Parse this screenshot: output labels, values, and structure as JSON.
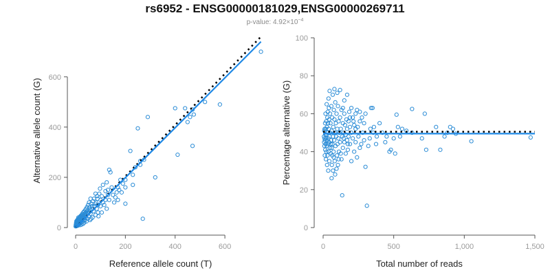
{
  "header": {
    "title": "rs6952 - ENSG00000181029,ENSG00000269711",
    "pvalue_prefix": "p-value: 4.92×10",
    "pvalue_exponent": "−4"
  },
  "colors": {
    "points": "#2b8cd6",
    "fit_line": "#1e88e5",
    "expected_line": "#000000"
  },
  "chart_data": [
    {
      "type": "scatter",
      "name": "left-panel",
      "title": "",
      "xlabel": "Reference allele count (T)",
      "ylabel": "Alternative allele count (G)",
      "xlim": [
        0,
        760
      ],
      "ylim": [
        0,
        780
      ],
      "x_ticks": [
        0,
        200,
        400,
        600
      ],
      "x_tick_labels": [
        "0",
        "200",
        "400",
        "600"
      ],
      "y_ticks": [
        0,
        200,
        400,
        600
      ],
      "y_tick_labels": [
        "0",
        "200",
        "400",
        "600"
      ],
      "fit_line": {
        "x": [
          0,
          745
        ],
        "y": [
          0,
          740
        ]
      },
      "expected_line": {
        "x": [
          0,
          745
        ],
        "y": [
          0,
          760
        ]
      },
      "points": [
        [
          745,
          700
        ],
        [
          580,
          490
        ],
        [
          520,
          500
        ],
        [
          470,
          470
        ],
        [
          475,
          450
        ],
        [
          460,
          440
        ],
        [
          450,
          420
        ],
        [
          440,
          475
        ],
        [
          410,
          290
        ],
        [
          400,
          475
        ],
        [
          470,
          325
        ],
        [
          290,
          440
        ],
        [
          320,
          200
        ],
        [
          270,
          35
        ],
        [
          250,
          395
        ],
        [
          260,
          265
        ],
        [
          275,
          270
        ],
        [
          260,
          250
        ],
        [
          240,
          240
        ],
        [
          230,
          210
        ],
        [
          230,
          170
        ],
        [
          220,
          305
        ],
        [
          200,
          160
        ],
        [
          200,
          190
        ],
        [
          190,
          175
        ],
        [
          185,
          140
        ],
        [
          170,
          110
        ],
        [
          180,
          190
        ],
        [
          170,
          160
        ],
        [
          160,
          120
        ],
        [
          200,
          95
        ],
        [
          135,
          230
        ],
        [
          140,
          220
        ],
        [
          130,
          150
        ],
        [
          130,
          130
        ],
        [
          120,
          110
        ],
        [
          120,
          145
        ],
        [
          110,
          100
        ],
        [
          110,
          170
        ],
        [
          105,
          125
        ],
        [
          100,
          85
        ],
        [
          100,
          110
        ],
        [
          95,
          135
        ],
        [
          90,
          60
        ],
        [
          90,
          90
        ],
        [
          88,
          115
        ],
        [
          85,
          75
        ],
        [
          82,
          100
        ],
        [
          80,
          50
        ],
        [
          80,
          135
        ],
        [
          75,
          85
        ],
        [
          72,
          65
        ],
        [
          70,
          105
        ],
        [
          68,
          40
        ],
        [
          65,
          75
        ],
        [
          63,
          95
        ],
        [
          60,
          55
        ],
        [
          60,
          115
        ],
        [
          58,
          30
        ],
        [
          56,
          80
        ],
        [
          55,
          62
        ],
        [
          52,
          45
        ],
        [
          50,
          90
        ],
        [
          48,
          35
        ],
        [
          47,
          68
        ],
        [
          45,
          52
        ],
        [
          44,
          25
        ],
        [
          42,
          75
        ],
        [
          40,
          40
        ],
        [
          40,
          58
        ],
        [
          38,
          30
        ],
        [
          37,
          48
        ],
        [
          35,
          20
        ],
        [
          34,
          64
        ],
        [
          33,
          38
        ],
        [
          32,
          28
        ],
        [
          30,
          45
        ],
        [
          30,
          15
        ],
        [
          28,
          35
        ],
        [
          27,
          55
        ],
        [
          26,
          22
        ],
        [
          25,
          40
        ],
        [
          24,
          12
        ],
        [
          23,
          30
        ],
        [
          22,
          48
        ],
        [
          21,
          18
        ],
        [
          20,
          35
        ],
        [
          20,
          25
        ],
        [
          19,
          10
        ],
        [
          18,
          28
        ],
        [
          18,
          42
        ],
        [
          17,
          20
        ],
        [
          16,
          32
        ],
        [
          15,
          14
        ],
        [
          15,
          24
        ],
        [
          14,
          38
        ],
        [
          13,
          18
        ],
        [
          13,
          28
        ],
        [
          12,
          12
        ],
        [
          12,
          22
        ],
        [
          11,
          30
        ],
        [
          11,
          16
        ],
        [
          10,
          8
        ],
        [
          10,
          20
        ],
        [
          10,
          26
        ],
        [
          9,
          14
        ],
        [
          9,
          33
        ],
        [
          8,
          10
        ],
        [
          8,
          18
        ],
        [
          7,
          24
        ],
        [
          7,
          12
        ],
        [
          6,
          16
        ],
        [
          6,
          8
        ],
        [
          5,
          20
        ],
        [
          5,
          11
        ],
        [
          4,
          14
        ],
        [
          4,
          6
        ],
        [
          3,
          10
        ],
        [
          3,
          17
        ],
        [
          2,
          8
        ],
        [
          2,
          13
        ],
        [
          1,
          6
        ],
        [
          1,
          11
        ],
        [
          0,
          5
        ],
        [
          150,
          130
        ],
        [
          155,
          100
        ],
        [
          145,
          160
        ],
        [
          165,
          140
        ],
        [
          175,
          150
        ],
        [
          125,
          180
        ],
        [
          115,
          90
        ],
        [
          135,
          110
        ],
        [
          125,
          75
        ],
        [
          105,
          60
        ],
        [
          98,
          155
        ],
        [
          92,
          45
        ],
        [
          86,
          125
        ],
        [
          78,
          95
        ],
        [
          74,
          115
        ],
        [
          66,
          85
        ],
        [
          62,
          35
        ],
        [
          58,
          72
        ],
        [
          54,
          100
        ],
        [
          49,
          58
        ],
        [
          46,
          82
        ],
        [
          43,
          62
        ],
        [
          41,
          50
        ],
        [
          39,
          70
        ],
        [
          36,
          55
        ],
        [
          31,
          60
        ],
        [
          29,
          40
        ],
        [
          26,
          50
        ],
        [
          24,
          45
        ],
        [
          22,
          38
        ],
        [
          19,
          45
        ],
        [
          17,
          38
        ],
        [
          14,
          25
        ],
        [
          12,
          35
        ],
        [
          11,
          40
        ],
        [
          9,
          22
        ],
        [
          8,
          28
        ],
        [
          7,
          30
        ],
        [
          6,
          22
        ],
        [
          5,
          28
        ],
        [
          4,
          22
        ],
        [
          3,
          25
        ],
        [
          2,
          18
        ]
      ]
    },
    {
      "type": "scatter",
      "name": "right-panel",
      "title": "",
      "xlabel": "Total number of reads",
      "ylabel": "Percentage alternative (G)",
      "xlim": [
        0,
        1500
      ],
      "ylim": [
        0,
        100
      ],
      "x_ticks": [
        0,
        500,
        1000,
        1500
      ],
      "x_tick_labels": [
        "0",
        "500",
        "1,000",
        "1,500"
      ],
      "y_ticks": [
        0,
        20,
        40,
        60,
        80,
        100
      ],
      "y_tick_labels": [
        "0",
        "20",
        "40",
        "60",
        "80",
        "100"
      ],
      "fit_line": {
        "x": [
          0,
          1500
        ],
        "y": [
          49.5,
          49.5
        ]
      },
      "expected_line": {
        "x": [
          0,
          1500
        ],
        "y": [
          50.5,
          50.5
        ]
      },
      "points": [
        [
          1470,
          47.5
        ],
        [
          1050,
          45.5
        ],
        [
          940,
          49.5
        ],
        [
          920,
          52
        ],
        [
          900,
          53
        ],
        [
          880,
          50
        ],
        [
          860,
          48
        ],
        [
          830,
          41
        ],
        [
          800,
          53
        ],
        [
          730,
          41
        ],
        [
          720,
          60
        ],
        [
          630,
          62.5
        ],
        [
          590,
          51
        ],
        [
          560,
          52
        ],
        [
          530,
          53
        ],
        [
          520,
          59.5
        ],
        [
          510,
          39
        ],
        [
          480,
          41
        ],
        [
          470,
          40
        ],
        [
          440,
          45
        ],
        [
          420,
          50
        ],
        [
          400,
          55
        ],
        [
          380,
          48
        ],
        [
          360,
          53
        ],
        [
          350,
          63
        ],
        [
          340,
          63
        ],
        [
          330,
          47
        ],
        [
          320,
          43
        ],
        [
          310,
          11.5
        ],
        [
          300,
          60
        ],
        [
          300,
          32
        ],
        [
          290,
          55
        ],
        [
          280,
          50
        ],
        [
          270,
          44
        ],
        [
          260,
          42
        ],
        [
          260,
          56
        ],
        [
          250,
          48
        ],
        [
          240,
          62
        ],
        [
          240,
          37
        ],
        [
          230,
          52
        ],
        [
          230,
          45
        ],
        [
          220,
          54
        ],
        [
          220,
          40
        ],
        [
          210,
          47
        ],
        [
          210,
          58
        ],
        [
          200,
          50
        ],
        [
          200,
          35
        ],
        [
          190,
          53
        ],
        [
          190,
          44
        ],
        [
          185,
          61
        ],
        [
          180,
          48
        ],
        [
          180,
          56
        ],
        [
          175,
          41
        ],
        [
          170,
          52
        ],
        [
          170,
          46
        ],
        [
          165,
          57
        ],
        [
          160,
          49
        ],
        [
          160,
          39
        ],
        [
          155,
          54
        ],
        [
          150,
          45
        ],
        [
          150,
          60
        ],
        [
          145,
          50
        ],
        [
          140,
          42
        ],
        [
          140,
          55
        ],
        [
          135,
          48
        ],
        [
          130,
          62
        ],
        [
          130,
          36
        ],
        [
          125,
          52
        ],
        [
          120,
          45
        ],
        [
          120,
          58
        ],
        [
          115,
          50
        ],
        [
          112,
          40
        ],
        [
          110,
          56
        ],
        [
          108,
          47
        ],
        [
          105,
          64
        ],
        [
          102,
          44
        ],
        [
          100,
          52
        ],
        [
          98,
          38
        ],
        [
          95,
          60
        ],
        [
          92,
          48
        ],
        [
          90,
          55
        ],
        [
          88,
          43
        ],
        [
          86,
          66
        ],
        [
          84,
          50
        ],
        [
          82,
          35
        ],
        [
          80,
          57
        ],
        [
          78,
          46
        ],
        [
          76,
          62
        ],
        [
          74,
          40
        ],
        [
          72,
          53
        ],
        [
          70,
          48
        ],
        [
          68,
          70
        ],
        [
          66,
          44
        ],
        [
          64,
          58
        ],
        [
          62,
          33
        ],
        [
          60,
          51
        ],
        [
          58,
          64
        ],
        [
          56,
          46
        ],
        [
          54,
          39
        ],
        [
          52,
          55
        ],
        [
          50,
          50
        ],
        [
          49,
          60
        ],
        [
          48,
          42
        ],
        [
          46,
          72
        ],
        [
          45,
          48
        ],
        [
          44,
          35
        ],
        [
          43,
          57
        ],
        [
          42,
          45
        ],
        [
          41,
          63
        ],
        [
          40,
          52
        ],
        [
          39,
          40
        ],
        [
          38,
          68
        ],
        [
          37,
          47
        ],
        [
          36,
          30
        ],
        [
          35,
          55
        ],
        [
          34,
          44
        ],
        [
          33,
          61
        ],
        [
          32,
          50
        ],
        [
          31,
          38
        ],
        [
          30,
          58
        ],
        [
          29,
          46
        ],
        [
          28,
          33
        ],
        [
          27,
          53
        ],
        [
          26,
          43
        ],
        [
          25,
          65
        ],
        [
          24,
          49
        ],
        [
          23,
          40
        ],
        [
          22,
          56
        ],
        [
          21,
          47
        ],
        [
          20,
          36
        ],
        [
          19,
          52
        ],
        [
          18,
          44
        ],
        [
          17,
          60
        ],
        [
          16,
          49
        ],
        [
          15,
          41
        ],
        [
          14,
          55
        ],
        [
          13,
          46
        ],
        [
          12,
          38
        ],
        [
          11,
          52
        ],
        [
          10,
          47
        ],
        [
          9,
          43
        ],
        [
          8,
          51
        ],
        [
          7,
          45
        ],
        [
          6,
          48
        ],
        [
          60,
          26
        ],
        [
          70,
          30
        ],
        [
          85,
          28
        ],
        [
          95,
          31
        ],
        [
          105,
          33
        ],
        [
          135,
          17
        ],
        [
          120,
          72.5
        ],
        [
          80,
          73
        ],
        [
          100,
          71
        ],
        [
          140,
          63
        ],
        [
          150,
          67
        ],
        [
          170,
          70
        ],
        [
          200,
          63
        ],
        [
          230,
          60
        ],
        [
          260,
          61
        ],
        [
          60,
          42
        ],
        [
          75,
          37
        ],
        [
          65,
          38
        ],
        [
          55,
          44
        ],
        [
          110,
          36
        ],
        [
          125,
          39
        ],
        [
          145,
          47
        ],
        [
          175,
          44
        ],
        [
          190,
          58
        ],
        [
          215,
          56
        ],
        [
          245,
          53
        ],
        [
          275,
          58
        ],
        [
          290,
          46
        ],
        [
          335,
          52
        ],
        [
          355,
          50
        ],
        [
          375,
          44
        ],
        [
          450,
          48
        ],
        [
          500,
          47
        ],
        [
          545,
          48
        ],
        [
          630,
          50
        ],
        [
          700,
          47
        ]
      ]
    }
  ]
}
